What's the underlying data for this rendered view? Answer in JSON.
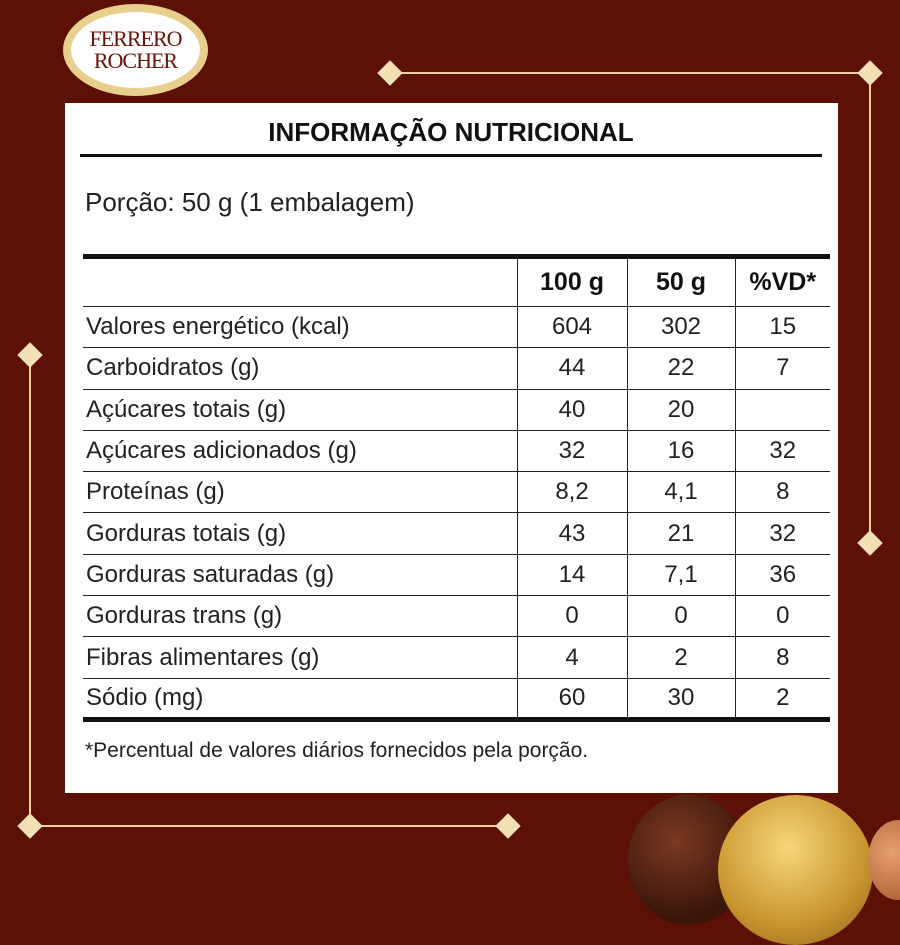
{
  "brand": {
    "logo_line1": "FERRERO",
    "logo_line2": "ROCHER"
  },
  "colors": {
    "background": "#5c1006",
    "gold": "#e9d3a0"
  },
  "title": "INFORMAÇÃO NUTRICIONAL",
  "portion": "Porção: 50 g (1 embalagem)",
  "table": {
    "headers": [
      "",
      "100 g",
      "50 g",
      "%VD*"
    ],
    "rows": [
      [
        "Valores energético (kcal)",
        "604",
        "302",
        "15"
      ],
      [
        "Carboidratos (g)",
        "44",
        "22",
        "7"
      ],
      [
        "Açúcares totais (g)",
        "40",
        "20",
        ""
      ],
      [
        "Açúcares adicionados (g)",
        "32",
        "16",
        "32"
      ],
      [
        "Proteínas (g)",
        "8,2",
        "4,1",
        "8"
      ],
      [
        "Gorduras totais (g)",
        "43",
        "21",
        "32"
      ],
      [
        "Gorduras saturadas (g)",
        "14",
        "7,1",
        "36"
      ],
      [
        "Gorduras trans (g)",
        "0",
        "0",
        "0"
      ],
      [
        "Fibras alimentares (g)",
        "4",
        "2",
        "8"
      ],
      [
        "Sódio (mg)",
        "60",
        "30",
        "2"
      ]
    ]
  },
  "footnote": "*Percentual de valores diários fornecidos pela porção."
}
